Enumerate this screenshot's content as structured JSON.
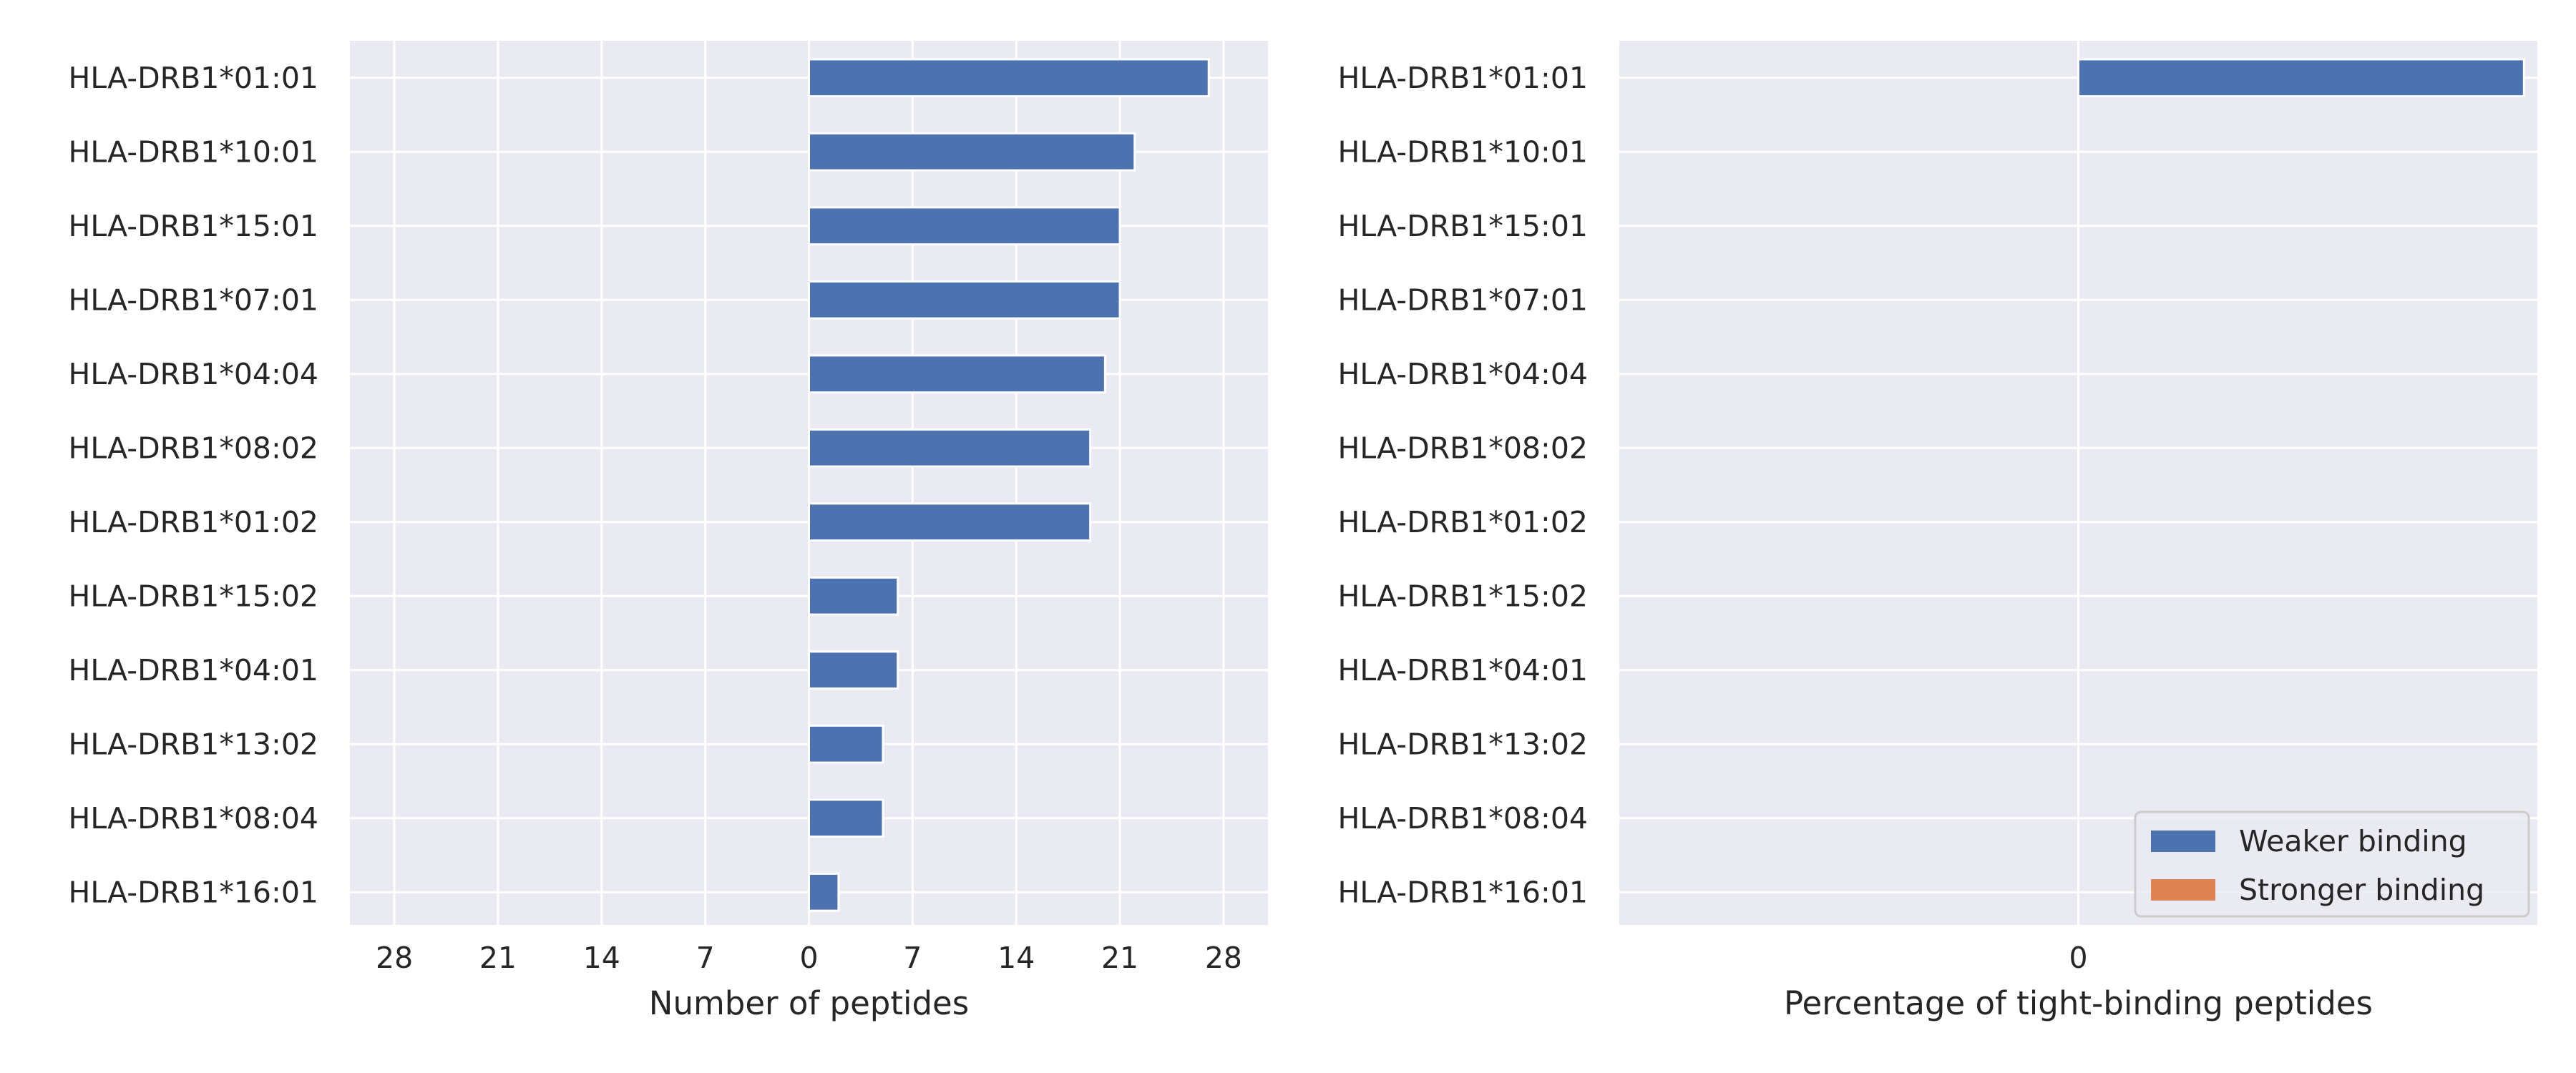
{
  "chart_data": [
    {
      "type": "bar",
      "orientation": "horizontal",
      "categories": [
        "HLA-DRB1*01:01",
        "HLA-DRB1*10:01",
        "HLA-DRB1*15:01",
        "HLA-DRB1*07:01",
        "HLA-DRB1*04:04",
        "HLA-DRB1*08:02",
        "HLA-DRB1*01:02",
        "HLA-DRB1*15:02",
        "HLA-DRB1*04:01",
        "HLA-DRB1*13:02",
        "HLA-DRB1*08:04",
        "HLA-DRB1*16:01"
      ],
      "series": [
        {
          "values": [
            27,
            22,
            21,
            21,
            20,
            19,
            19,
            6,
            6,
            5,
            5,
            2
          ],
          "color": "#4c72b0"
        }
      ],
      "xlabel": "Number of peptides",
      "ylabel": "",
      "xlim": [
        -31,
        31
      ],
      "xticks": [
        -28,
        -21,
        -14,
        -7,
        0,
        7,
        14,
        21,
        28
      ],
      "xtick_labels": [
        "28",
        "21",
        "14",
        "7",
        "0",
        "7",
        "14",
        "21",
        "28"
      ],
      "grid": true,
      "background": "#eaeaf2"
    },
    {
      "type": "bar",
      "orientation": "horizontal",
      "stacked": true,
      "categories": [
        "HLA-DRB1*01:01",
        "HLA-DRB1*10:01",
        "HLA-DRB1*15:01",
        "HLA-DRB1*07:01",
        "HLA-DRB1*04:04",
        "HLA-DRB1*08:02",
        "HLA-DRB1*01:02",
        "HLA-DRB1*15:02",
        "HLA-DRB1*04:01",
        "HLA-DRB1*13:02",
        "HLA-DRB1*08:04",
        "HLA-DRB1*16:01"
      ],
      "series": [
        {
          "name": "Weaker binding",
          "values": [
            1,
            0,
            0,
            0,
            0,
            0,
            0,
            0,
            0,
            0,
            0,
            0
          ],
          "color": "#4c72b0"
        },
        {
          "name": "Stronger binding",
          "values": [
            0,
            0,
            0,
            0,
            0,
            0,
            0,
            0,
            0,
            0,
            0,
            0
          ],
          "color": "#dd8452"
        }
      ],
      "xlabel": "Percentage of tight-binding peptides",
      "ylabel": "",
      "xlim": [
        -1.03,
        1.03
      ],
      "xticks": [
        0
      ],
      "xtick_labels": [
        "0"
      ],
      "grid": true,
      "legend": "lower-right",
      "background": "#eaeaf2"
    }
  ]
}
